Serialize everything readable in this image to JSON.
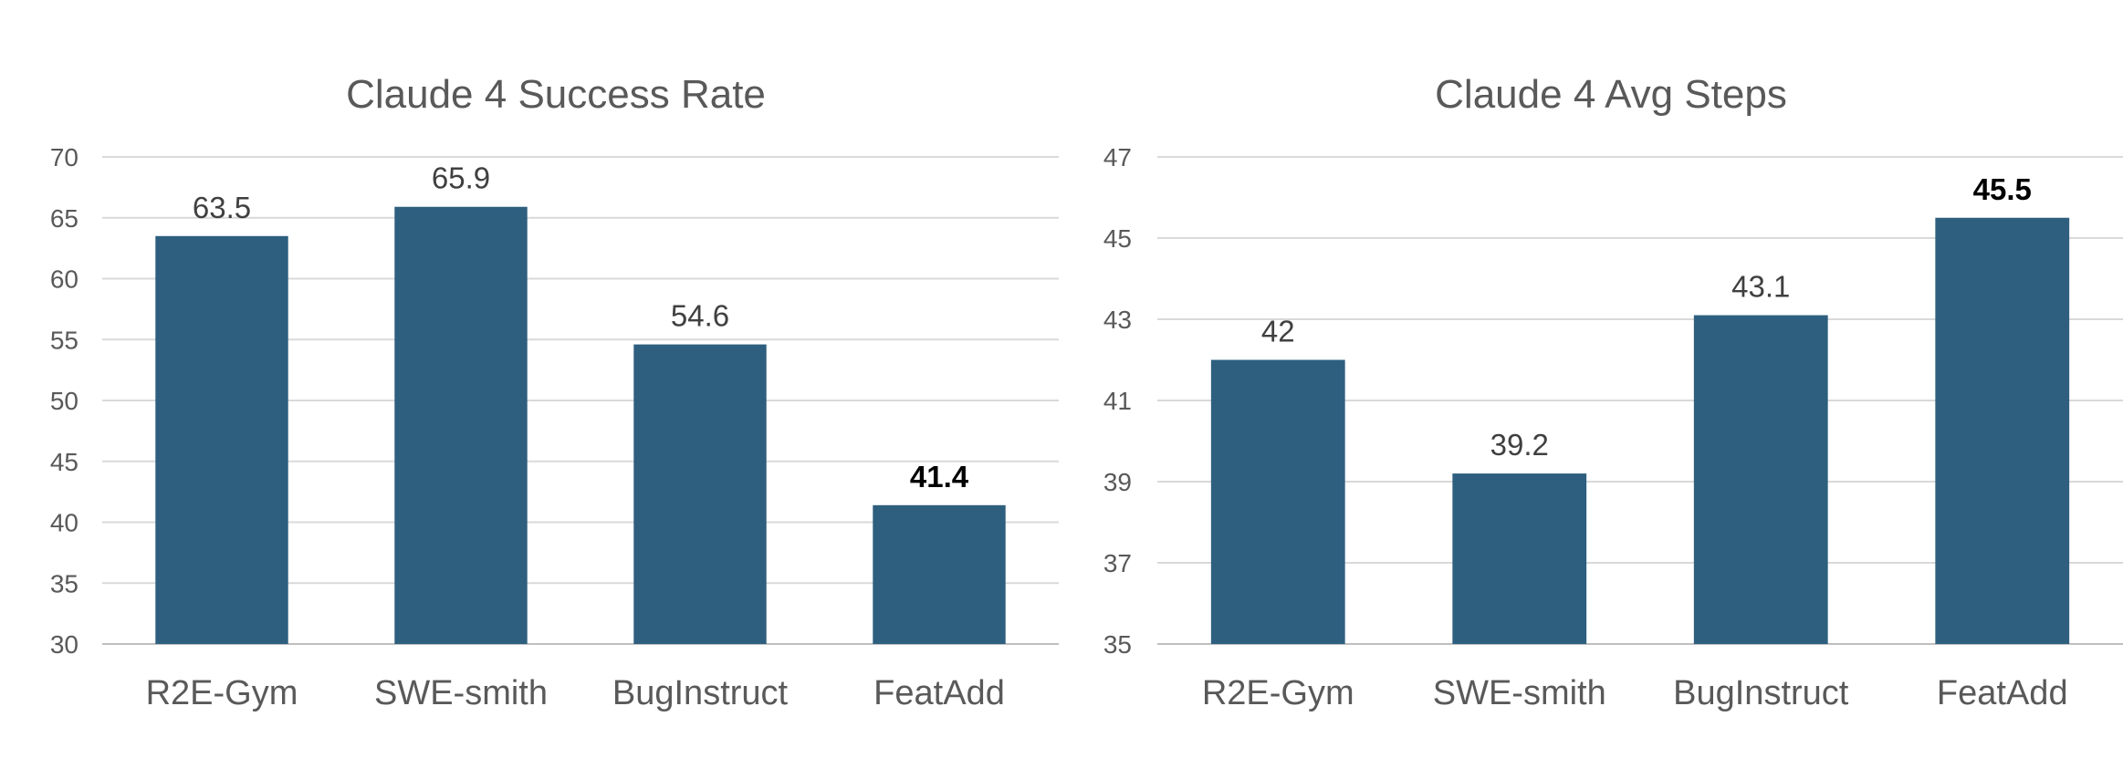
{
  "chart_data": [
    {
      "type": "bar",
      "title": "Claude 4 Success Rate",
      "xlabel": "",
      "ylabel": "",
      "categories": [
        "R2E-Gym",
        "SWE-smith",
        "BugInstruct",
        "FeatAdd"
      ],
      "values": [
        63.5,
        65.9,
        54.6,
        41.4
      ],
      "data_labels": [
        "63.5",
        "65.9",
        "54.6",
        "41.4"
      ],
      "highlighted_label_index": 3,
      "ylim": [
        30,
        70
      ],
      "yticks": [
        30,
        35,
        40,
        45,
        50,
        55,
        60,
        65,
        70
      ],
      "grid": true,
      "legend": "none",
      "bar_color": "#2e5f7f"
    },
    {
      "type": "bar",
      "title": "Claude 4 Avg Steps",
      "xlabel": "",
      "ylabel": "",
      "categories": [
        "R2E-Gym",
        "SWE-smith",
        "BugInstruct",
        "FeatAdd"
      ],
      "values": [
        42,
        39.2,
        43.1,
        45.5
      ],
      "data_labels": [
        "42",
        "39.2",
        "43.1",
        "45.5"
      ],
      "highlighted_label_index": 3,
      "ylim": [
        35,
        47
      ],
      "yticks": [
        35,
        37,
        39,
        41,
        43,
        45,
        47
      ],
      "grid": true,
      "legend": "none",
      "bar_color": "#2e5f7f"
    }
  ]
}
